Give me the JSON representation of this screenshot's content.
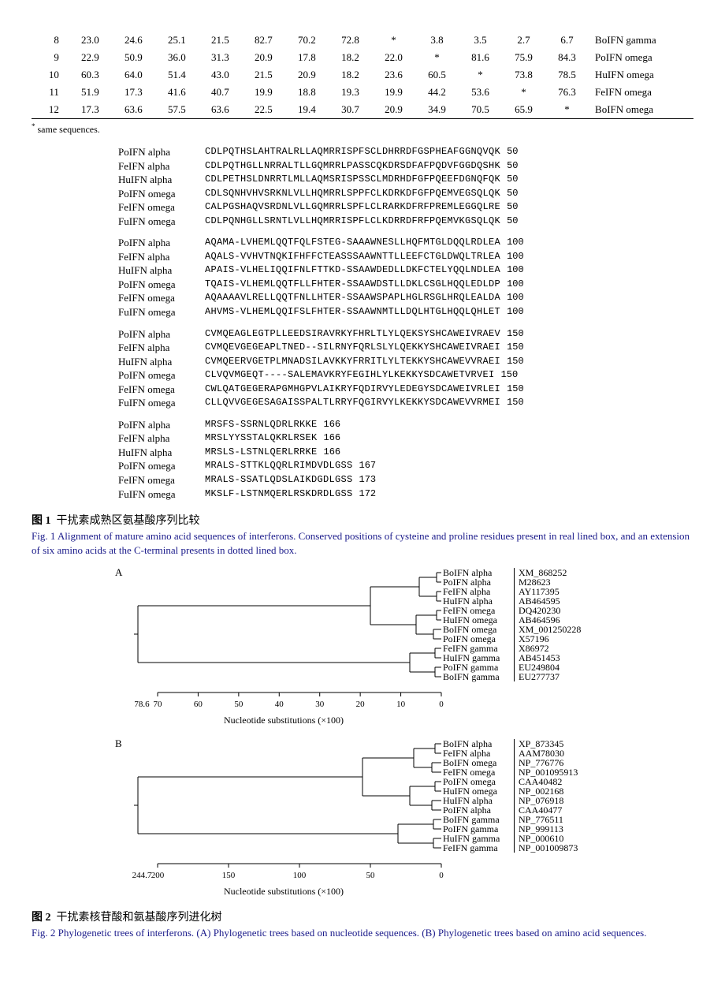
{
  "table": {
    "rows": [
      [
        "8",
        "23.0",
        "24.6",
        "25.1",
        "21.5",
        "82.7",
        "70.2",
        "72.8",
        "*",
        "3.8",
        "3.5",
        "2.7",
        "6.7",
        "BoIFN gamma"
      ],
      [
        "9",
        "22.9",
        "50.9",
        "36.0",
        "31.3",
        "20.9",
        "17.8",
        "18.2",
        "22.0",
        "*",
        "81.6",
        "75.9",
        "84.3",
        "PoIFN omega"
      ],
      [
        "10",
        "60.3",
        "64.0",
        "51.4",
        "43.0",
        "21.5",
        "20.9",
        "18.2",
        "23.6",
        "60.5",
        "*",
        "73.8",
        "78.5",
        "HuIFN omega"
      ],
      [
        "11",
        "51.9",
        "17.3",
        "41.6",
        "40.7",
        "19.9",
        "18.8",
        "19.3",
        "19.9",
        "44.2",
        "53.6",
        "*",
        "76.3",
        "FeIFN omega"
      ],
      [
        "12",
        "17.3",
        "63.6",
        "57.5",
        "63.6",
        "22.5",
        "19.4",
        "30.7",
        "20.9",
        "34.9",
        "70.5",
        "65.9",
        "*",
        "BoIFN omega"
      ]
    ],
    "footnote": "same sequences."
  },
  "alignment": {
    "blocks": [
      {
        "rows": [
          {
            "label": "PoIFN alpha",
            "seq": "CDLPQTHSLAHTRALRLLAQMRRISPFSCLDHRRDFGSPHEAFGGNQVQK",
            "n": "50"
          },
          {
            "label": "FeIFN alpha",
            "seq": "CDLPQTHGLLNRRALTLLGQMRRLPASSCQKDRSDFAFPQDVFGGDQSHK",
            "n": "50"
          },
          {
            "label": "HuIFN alpha",
            "seq": "CDLPETHSLDNRRTLMLLAQMSRISPSSCLMDRHDFGFPQEEFDGNQFQK",
            "n": "50"
          },
          {
            "label": "PoIFN omega",
            "seq": "CDLSQNHVHVSRKNLVLLHQMRRLSPPFCLKDRKDFGFPQEMVEGSQLQK",
            "n": "50"
          },
          {
            "label": "FeIFN omega",
            "seq": "CALPGSHAQVSRDNLVLLGQMRRLSPFLCLRARKDFRFPREMLEGGQLRE",
            "n": "50"
          },
          {
            "label": "FuIFN omega",
            "seq": "CDLPQNHGLLSRNTLVLLHQMRRISPFLCLKDRRDFRFPQEMVKGSQLQK",
            "n": "50"
          }
        ]
      },
      {
        "rows": [
          {
            "label": "PoIFN alpha",
            "seq": "AQAMA-LVHEMLQQTFQLFSTEG-SAAAWNESLLHQFMTGLDQQLRDLEA",
            "n": "100"
          },
          {
            "label": "FeIFN alpha",
            "seq": "AQALS-VVHVTNQKIFHFFCTEASSSAAWNTTLLEEFCTGLDWQLTRLEA",
            "n": "100"
          },
          {
            "label": "HuIFN alpha",
            "seq": "APAIS-VLHELIQQIFNLFTTKD-SSAAWDEDLLDKFCTELYQQLNDLEA",
            "n": "100"
          },
          {
            "label": "PoIFN omega",
            "seq": "TQAIS-VLHEMLQQTFLLFHTER-SSAAWDSTLLDKLCSGLHQQLEDLDP",
            "n": "100"
          },
          {
            "label": "FeIFN omega",
            "seq": "AQAAAAVLRELLQQTFNLLHTER-SSAAWSPAPLHGLRSGLHRQLEALDA",
            "n": "100"
          },
          {
            "label": "FuIFN omega",
            "seq": "AHVMS-VLHEMLQQIFSLFHTER-SSAAWNMTLLDQLHTGLHQQLQHLET",
            "n": "100"
          }
        ]
      },
      {
        "rows": [
          {
            "label": "PoIFN alpha",
            "seq": "CVMQEAGLEGTPLLEEDSIRAVRKYFHRLTLYLQEKSYSHCAWEIVRAEV",
            "n": "150"
          },
          {
            "label": "FeIFN alpha",
            "seq": "CVMQEVGEGEAPLTNED--SILRNYFQRLSLYLQEKKYSHCAWEIVRAEI",
            "n": "150"
          },
          {
            "label": "HuIFN alpha",
            "seq": "CVMQEERVGETPLMNADSILAVKKYFRRITLYLTEKKYSHCAWEVVRAEI",
            "n": "150"
          },
          {
            "label": "PoIFN omega",
            "seq": "CLVQVMGEQT----SALEMAVKRYFEGIHLYLKEKKYSDCAWETVRVEI",
            "n": "150"
          },
          {
            "label": "FeIFN omega",
            "seq": "CWLQATGEGERAPGMHGPVLAIKRYFQDIRVYLEDEGYSDCAWEIVRLEI",
            "n": "150"
          },
          {
            "label": "FuIFN omega",
            "seq": "CLLQVVGEGESAGAISSPALTLRRYFQGIRVYLKEKKYSDCAWEVVRMEI",
            "n": "150"
          }
        ]
      },
      {
        "rows": [
          {
            "label": "PoIFN alpha",
            "seq": "MRSFS-SSRNLQDRLRKKE",
            "n": "166"
          },
          {
            "label": "FeIFN alpha",
            "seq": "MRSLYYSSTALQKRLRSEK",
            "n": "166"
          },
          {
            "label": "HuIFN alpha",
            "seq": "MRSLS-LSTNLQERLRRKE",
            "n": "166"
          },
          {
            "label": "PoIFN omega",
            "seq": "MRALS-STTKLQQRLRIMDVDLGSS",
            "n": "167"
          },
          {
            "label": "FeIFN omega",
            "seq": "MRALS-SSATLQDSLAIKDGDLGSS",
            "n": "173"
          },
          {
            "label": "FuIFN omega",
            "seq": "MKSLF-LSTNMQERLRSKDRDLGSS",
            "n": "172"
          }
        ]
      }
    ]
  },
  "fig1": {
    "cn_num": "图 1",
    "cn_title": "干扰素成熟区氨基酸序列比较",
    "en": "Fig. 1    Alignment of mature amino acid sequences of interferons. Conserved positions of cysteine and proline residues present in real lined box, and an extension of six amino acids at the C-terminal presents in dotted lined box."
  },
  "treeA": {
    "panel": "A",
    "root_x": "78.6",
    "axis_ticks": [
      "70",
      "60",
      "50",
      "40",
      "30",
      "20",
      "10",
      "0"
    ],
    "axis_label": "Nucleotide substitutions (×100)",
    "leaves": [
      {
        "name": "BoIFN alpha",
        "acc": "XM_868252"
      },
      {
        "name": "PoIFN alpha",
        "acc": "M28623"
      },
      {
        "name": "FeIFN alpha",
        "acc": "AY117395"
      },
      {
        "name": "HuIFN alpha",
        "acc": "AB464595"
      },
      {
        "name": "FeIFN omega",
        "acc": "DQ420230"
      },
      {
        "name": "HuIFN omega",
        "acc": "AB464596"
      },
      {
        "name": "BoIFN omega",
        "acc": "XM_001250228"
      },
      {
        "name": "PoIFN omega",
        "acc": "X57196"
      },
      {
        "name": "FeIFN gamma",
        "acc": "X86972"
      },
      {
        "name": "HuIFN gamma",
        "acc": "AB451453"
      },
      {
        "name": "PoIFN gamma",
        "acc": "EU249804"
      },
      {
        "name": "BoIFN gamma",
        "acc": "EU277737"
      }
    ]
  },
  "treeB": {
    "panel": "B",
    "root_x": "244.7",
    "axis_ticks": [
      "200",
      "150",
      "100",
      "50",
      "0"
    ],
    "axis_label": "Nucleotide substitutions (×100)",
    "leaves": [
      {
        "name": "BoIFN alpha",
        "acc": "XP_873345"
      },
      {
        "name": "FeIFN alpha",
        "acc": "AAM78030"
      },
      {
        "name": "BoIFN omega",
        "acc": "NP_776776"
      },
      {
        "name": "FeIFN omega",
        "acc": "NP_001095913"
      },
      {
        "name": "PoIFN omega",
        "acc": "CAA40482"
      },
      {
        "name": "HuIFN omega",
        "acc": "NP_002168"
      },
      {
        "name": "HuIFN alpha",
        "acc": "NP_076918"
      },
      {
        "name": "PoIFN alpha",
        "acc": "CAA40477"
      },
      {
        "name": "BoIFN gamma",
        "acc": "NP_776511"
      },
      {
        "name": "PoIFN gamma",
        "acc": "NP_999113"
      },
      {
        "name": "HuIFN gamma",
        "acc": "NP_000610"
      },
      {
        "name": "FeIFN gamma",
        "acc": "NP_001009873"
      }
    ]
  },
  "fig2": {
    "cn_num": "图 2",
    "cn_title": "干扰素核苷酸和氨基酸序列进化树",
    "en": "Fig. 2    Phylogenetic trees of interferons. (A) Phylogenetic trees based on nucleotide sequences. (B) Phylogenetic trees based on amino acid sequences."
  },
  "style": {
    "text_color": "#000000",
    "caption_color": "#1a1a8a",
    "line_color": "#000000"
  }
}
